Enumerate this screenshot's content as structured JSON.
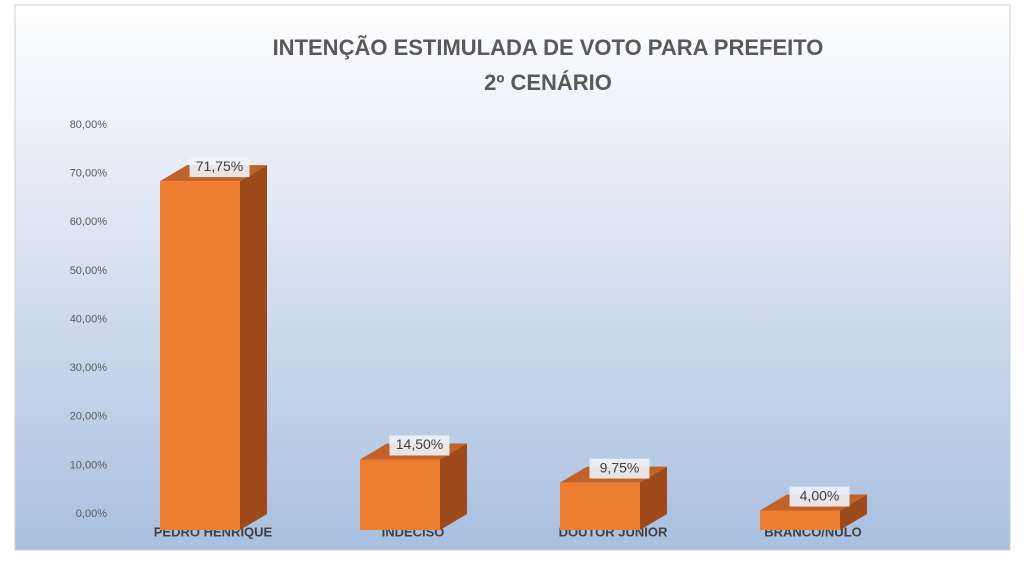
{
  "chart_data": {
    "type": "bar",
    "title": [
      "INTENÇÃO ESTIMULADA DE VOTO PARA PREFEITO",
      "2º CENÁRIO"
    ],
    "categories": [
      "PEDRO HENRIQUE",
      "INDECISO",
      "DOUTOR JUNIOR",
      "BRANCO/NULO"
    ],
    "values": [
      71.75,
      14.5,
      9.75,
      4
    ],
    "value_labels": [
      "71,75%",
      "14,50%",
      "9,75%",
      "4,00%"
    ],
    "color": "#ed7d31",
    "ylim": [
      0,
      80
    ],
    "yticks": [
      {
        "value": 0,
        "label": "0,00%"
      },
      {
        "value": 10,
        "label": "10,00%"
      },
      {
        "value": 20,
        "label": "20,00%"
      },
      {
        "value": 30,
        "label": "30,00%"
      },
      {
        "value": 40,
        "label": "40,00%"
      },
      {
        "value": 50,
        "label": "50,00%"
      },
      {
        "value": 60,
        "label": "60,00%"
      },
      {
        "value": 70,
        "label": "70,00%"
      },
      {
        "value": 80,
        "label": "80,00%"
      }
    ],
    "grid": false
  }
}
